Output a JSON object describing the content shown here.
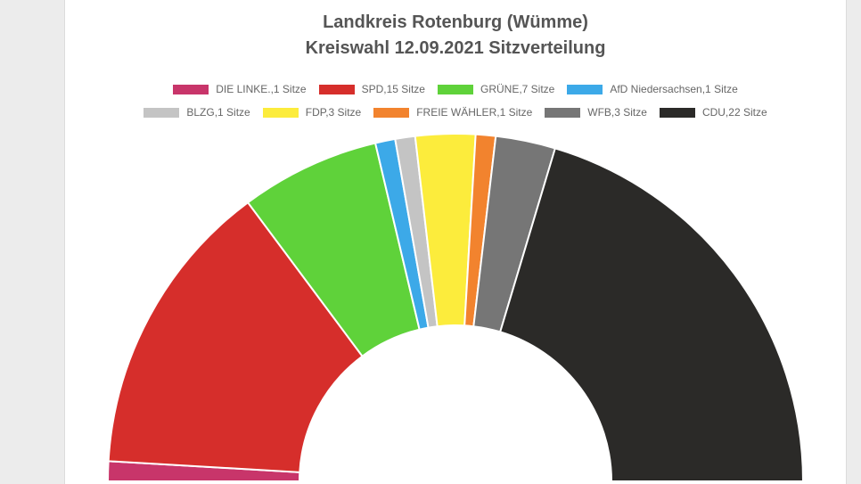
{
  "chart_data": {
    "type": "pie",
    "subtype": "half-doughnut",
    "title": "Landkreis Rotenburg (Wümme)",
    "subtitle": "Kreiswahl 12.09.2021 Sitzverteilung",
    "legend_position": "top",
    "series": [
      {
        "label": "DIE LINKE.,1 Sitze",
        "value": 1,
        "color": "#c8356a"
      },
      {
        "label": "SPD,15 Sitze",
        "value": 15,
        "color": "#d62e2b"
      },
      {
        "label": "GRÜNE,7 Sitze",
        "value": 7,
        "color": "#5fd23a"
      },
      {
        "label": "AfD Niedersachsen,1 Sitze",
        "value": 1,
        "color": "#3ca9e8"
      },
      {
        "label": "BLZG,1 Sitze",
        "value": 1,
        "color": "#c4c4c4"
      },
      {
        "label": "FDP,3 Sitze",
        "value": 3,
        "color": "#fcec3c"
      },
      {
        "label": "FREIE WÄHLER,1 Sitze",
        "value": 1,
        "color": "#f2832e"
      },
      {
        "label": "WFB,3 Sitze",
        "value": 3,
        "color": "#767676"
      },
      {
        "label": "CDU,22 Sitze",
        "value": 22,
        "color": "#2b2a28"
      }
    ]
  }
}
